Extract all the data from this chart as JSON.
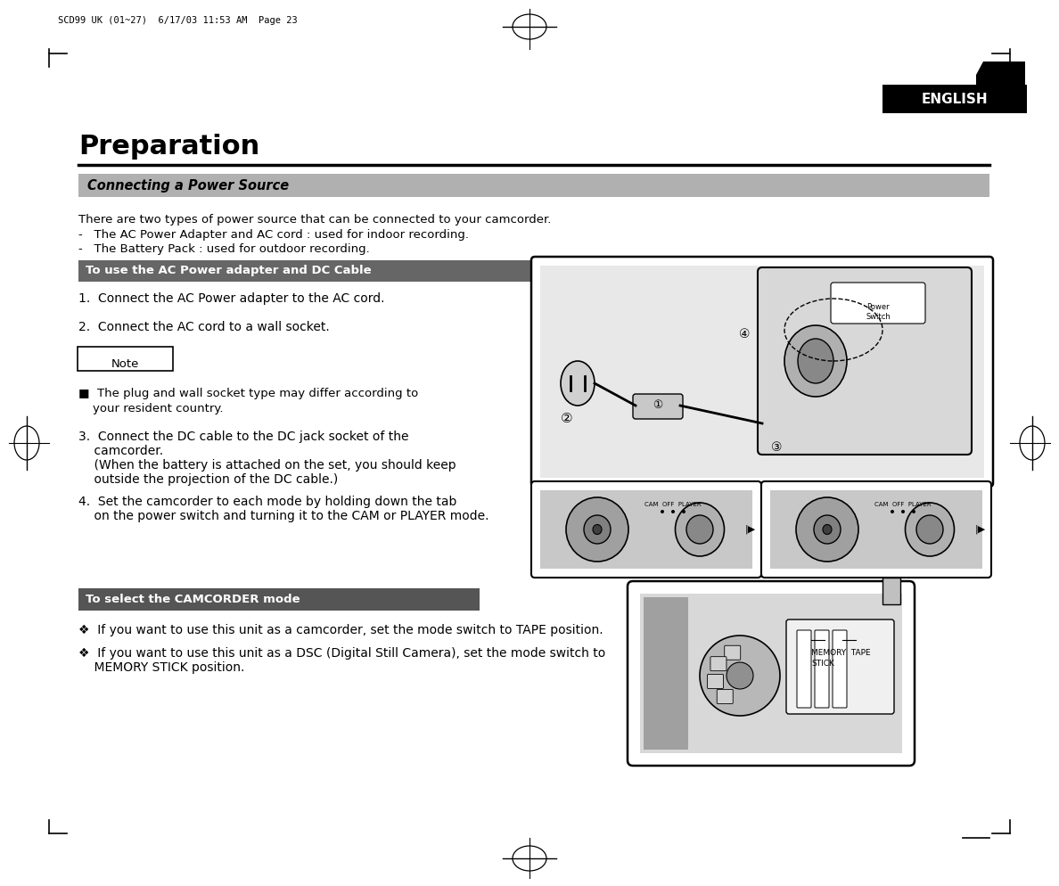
{
  "bg_color": "#ffffff",
  "header_text": "SCD99 UK (01~27)  6/17/03 11:53 AM  Page 23",
  "english_label": "ENGLISH",
  "english_bg": "#000000",
  "english_text_color": "#ffffff",
  "title": "Preparation",
  "section_bar_color": "#b0b0b0",
  "section_bar_text": "Connecting a Power Source",
  "section2_bar_color": "#555555",
  "section2_bar_text": "To select the CAMCORDER mode",
  "intro_text": "There are two types of power source that can be connected to your camcorder.",
  "bullet1": "-   The AC Power Adapter and AC cord : used for indoor recording.",
  "bullet2": "-   The Battery Pack : used for outdoor recording.",
  "subheader_text": "To use the AC Power adapter and DC Cable",
  "step1": "1.  Connect the AC Power adapter to the AC cord.",
  "step2": "2.  Connect the AC cord to a wall socket.",
  "note_label": "Note",
  "note_text": "■  The plug and wall socket type may differ according to\n    your resident country.",
  "step3_line1": "3.  Connect the DC cable to the DC jack socket of the",
  "step3_line2": "    camcorder.",
  "step3_line3": "    (When the battery is attached on the set, you should keep",
  "step3_line4": "    outside the projection of the DC cable.)",
  "step4_line1": "4.  Set the camcorder to each mode by holding down the tab",
  "step4_line2": "    on the power switch and turning it to the CAM or PLAYER mode.",
  "camcorder_bullet1": "❖  If you want to use this unit as a camcorder, set the mode switch to TAPE position.",
  "camcorder_bullet2": "❖  If you want to use this unit as a DSC (Digital Still Camera), set the mode switch to",
  "camcorder_bullet2b": "    MEMORY STICK position.",
  "page_number": "23",
  "page_num_bg": "#000000",
  "page_num_color": "#ffffff",
  "cl": 0.075,
  "cr": 0.935
}
